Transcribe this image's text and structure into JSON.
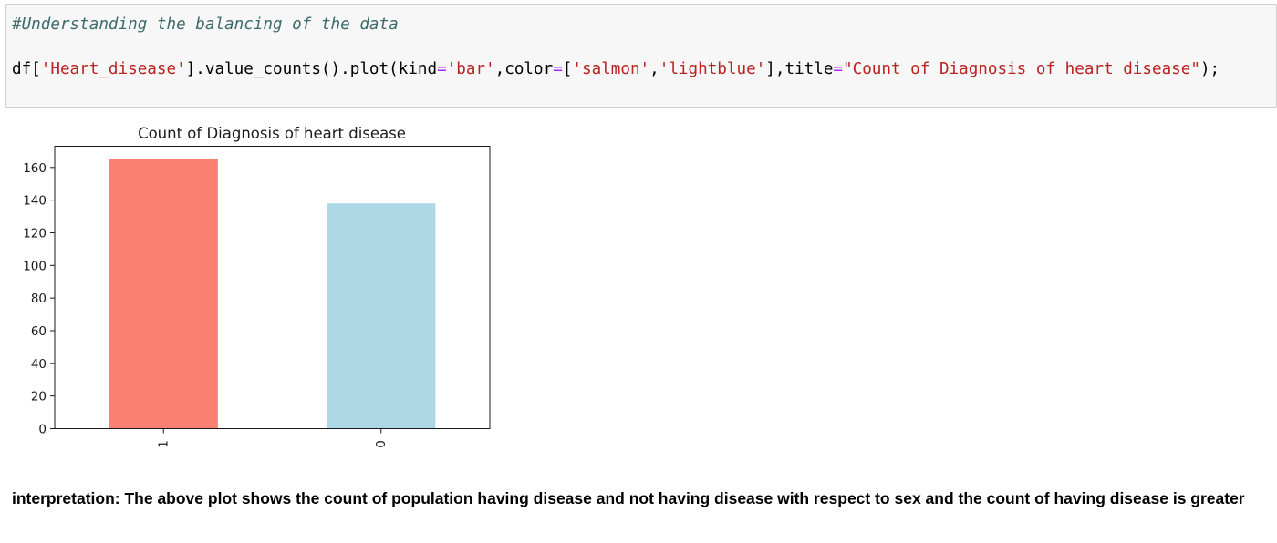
{
  "notebook": {
    "code": {
      "comment": "#Understanding the balancing of the data",
      "line": {
        "p1": "df[",
        "s1": "'Heart_disease'",
        "p2": "].value_counts().plot(kind",
        "eq1": "=",
        "s2": "'bar'",
        "p3": ",color",
        "eq2": "=",
        "p4": "[",
        "s3": "'salmon'",
        "p5": ",",
        "s4": "'lightblue'",
        "p6": "],title",
        "eq3": "=",
        "s5": "\"Count of Diagnosis of heart disease\"",
        "p7": ");"
      }
    },
    "interpretation": "interpretation: The above plot shows the count of population having disease and not having disease with respect to sex and the count of having disease is greater"
  },
  "chart_data": {
    "type": "bar",
    "title": "Count of Diagnosis of heart disease",
    "categories": [
      "1",
      "0"
    ],
    "values": [
      165,
      138
    ],
    "colors": [
      "#fa8072",
      "#add8e6"
    ],
    "ylim": [
      0,
      173
    ],
    "yticks": [
      "0",
      "20",
      "40",
      "60",
      "80",
      "100",
      "120",
      "140",
      "160"
    ],
    "xlabel": "",
    "ylabel": "",
    "grid": false,
    "legend": false
  }
}
